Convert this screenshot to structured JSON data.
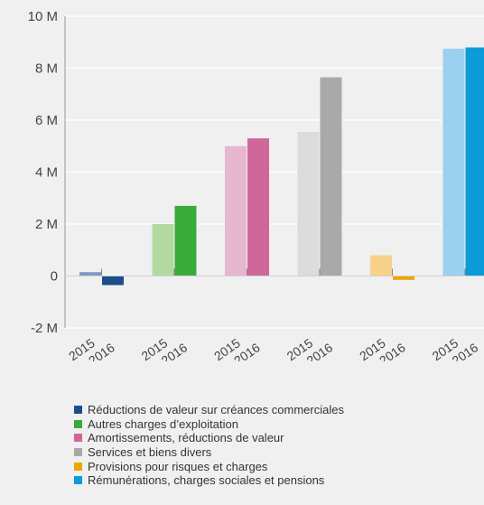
{
  "chart_data": {
    "type": "bar",
    "ylim": [
      -2,
      10
    ],
    "yticks": [
      {
        "value": 10,
        "label": "10 M"
      },
      {
        "value": 8,
        "label": "8 M"
      },
      {
        "value": 6,
        "label": "6 M"
      },
      {
        "value": 4,
        "label": "4 M"
      },
      {
        "value": 2,
        "label": "2 M"
      },
      {
        "value": 0,
        "label": "0"
      },
      {
        "value": -2,
        "label": "-2 M"
      }
    ],
    "grid": "horizontal",
    "legend_position": "bottom-left",
    "categories": [
      {
        "name": "Réductions de valeur sur créances commerciales",
        "color": "#1a4f8c",
        "color_light": "#7d9cc4",
        "values": {
          "2015": 0.15,
          "2016": -0.35
        }
      },
      {
        "name": "Autres charges d’exploitation",
        "color": "#3aaa3a",
        "color_light": "#b3d9a0",
        "values": {
          "2015": 2.0,
          "2016": 2.7
        }
      },
      {
        "name": "Amortissements, réductions de valeur",
        "color": "#d0679a",
        "color_light": "#e7b6cf",
        "values": {
          "2015": 5.0,
          "2016": 5.3
        }
      },
      {
        "name": "Services et biens divers",
        "color": "#a9a9a9",
        "color_light": "#dcdcdc",
        "values": {
          "2015": 5.55,
          "2016": 7.65
        }
      },
      {
        "name": "Provisions pour risques et charges",
        "color": "#f0a500",
        "color_light": "#f8d28a",
        "values": {
          "2015": 0.8,
          "2016": -0.15
        }
      },
      {
        "name": "Rémunérations, charges sociales et pensions",
        "color": "#0a9bd8",
        "color_light": "#9bd0ef",
        "values": {
          "2015": 8.75,
          "2016": 8.8
        }
      }
    ],
    "year_labels": [
      "2015",
      "2016"
    ]
  }
}
